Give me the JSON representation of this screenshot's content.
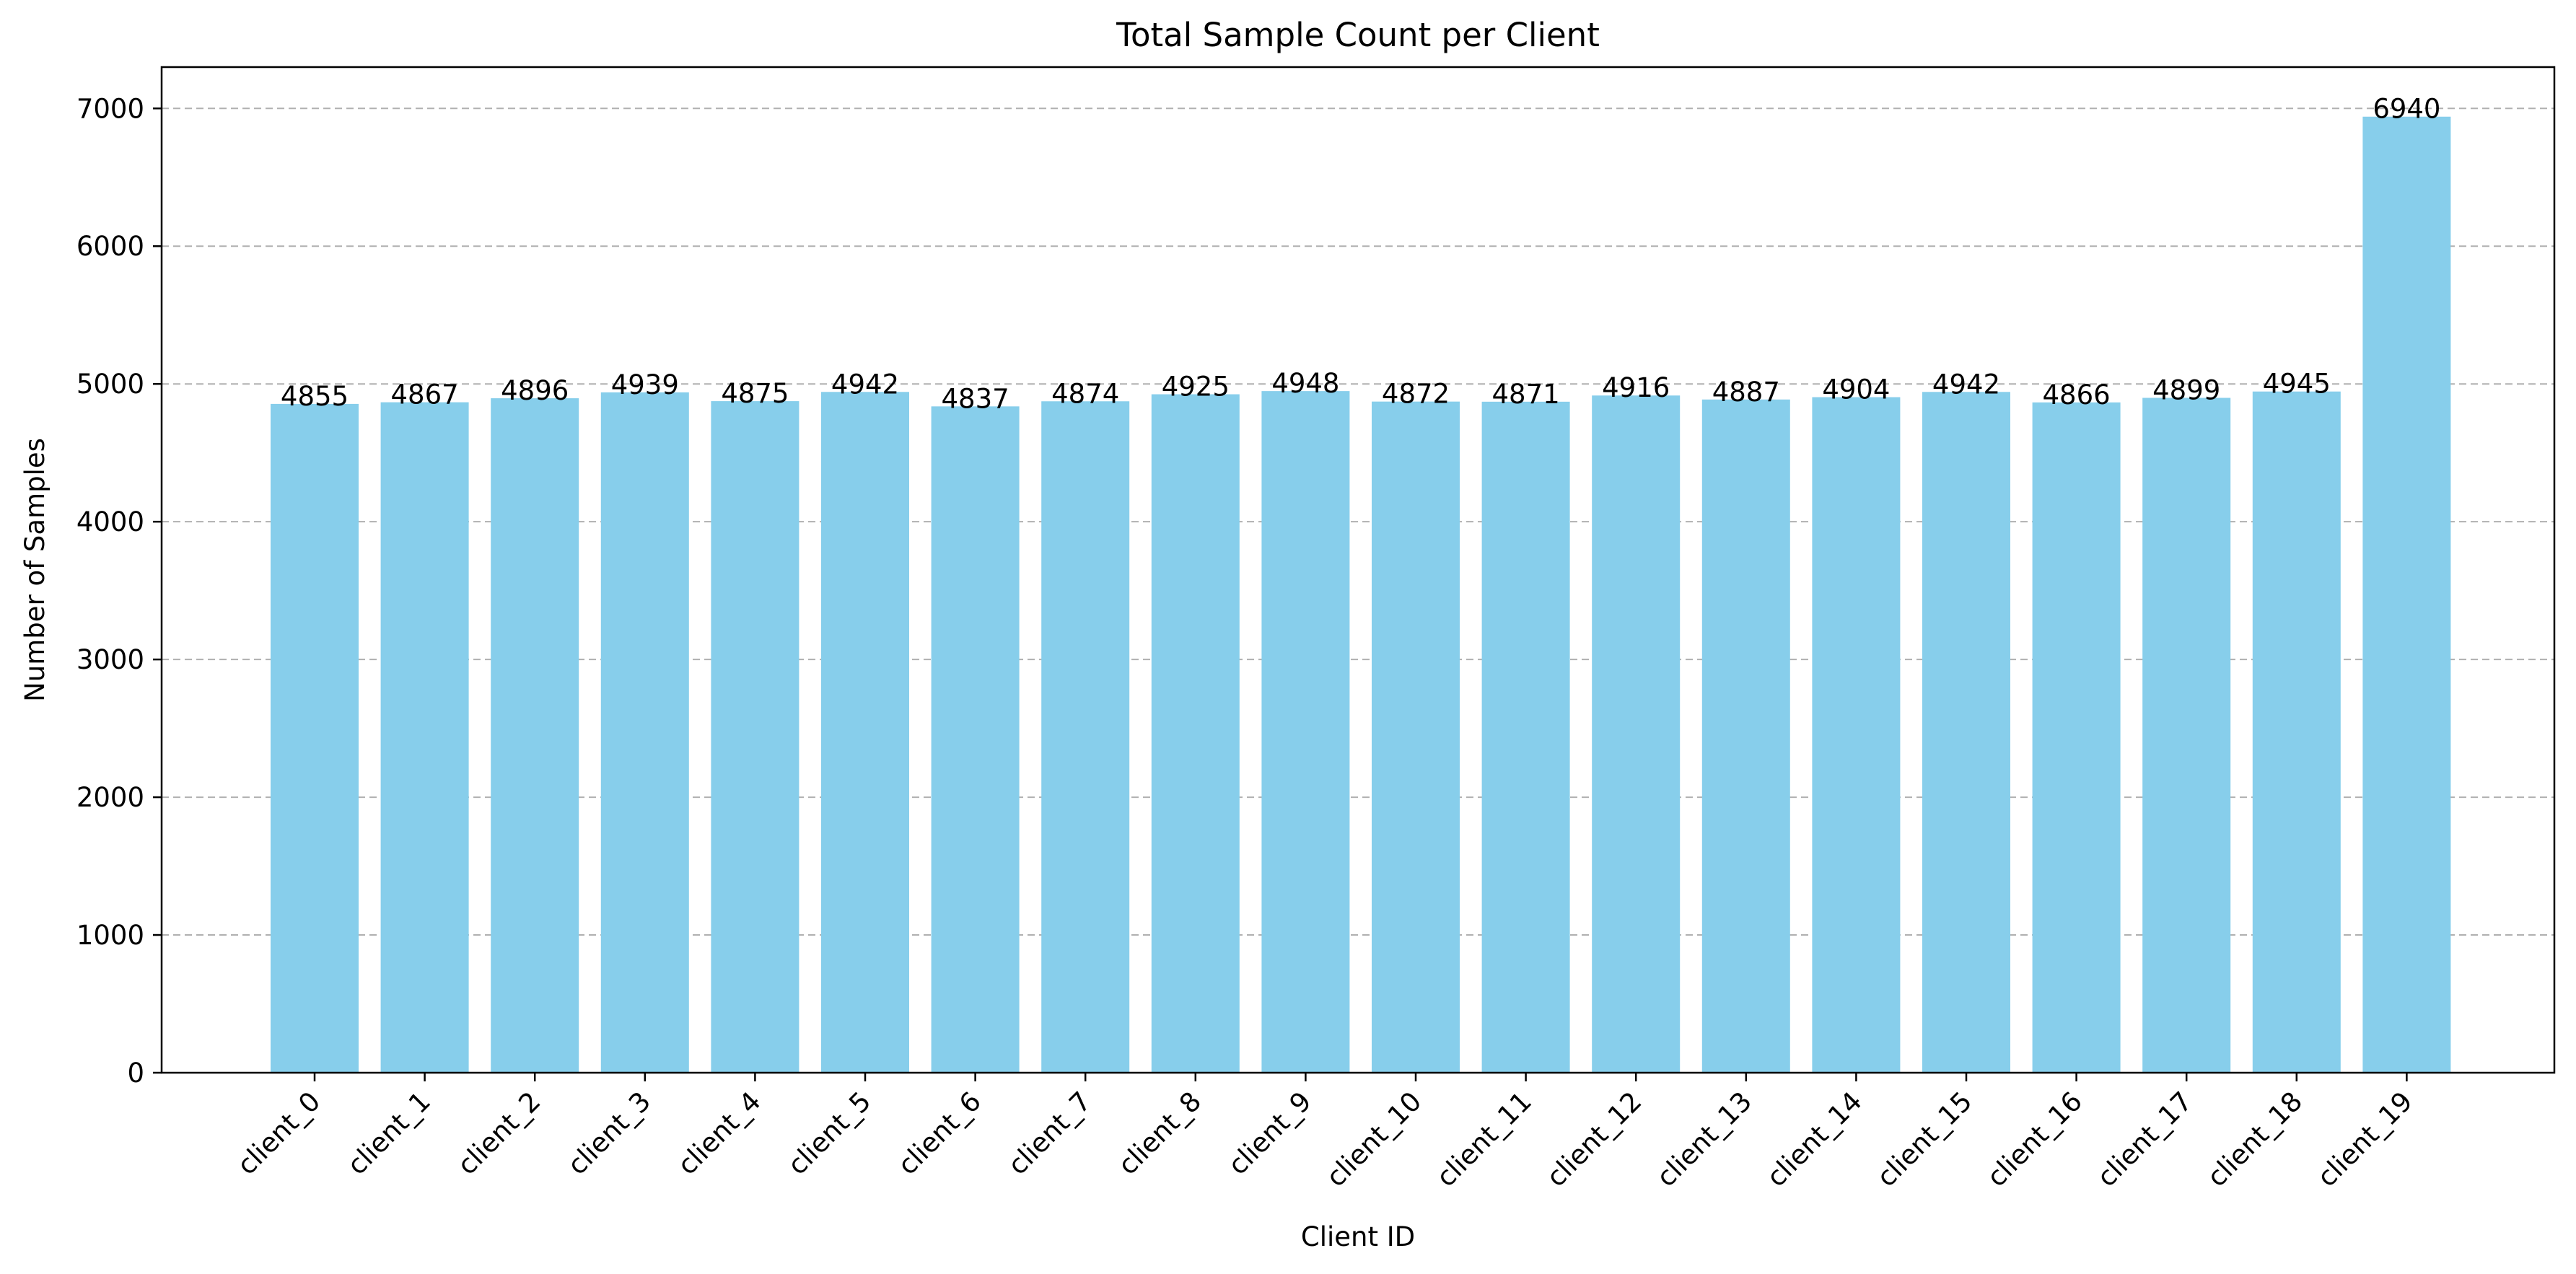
{
  "chart_data": {
    "type": "bar",
    "title": "Total Sample Count per Client",
    "xlabel": "Client ID",
    "ylabel": "Number of Samples",
    "categories": [
      "client_0",
      "client_1",
      "client_2",
      "client_3",
      "client_4",
      "client_5",
      "client_6",
      "client_7",
      "client_8",
      "client_9",
      "client_10",
      "client_11",
      "client_12",
      "client_13",
      "client_14",
      "client_15",
      "client_16",
      "client_17",
      "client_18",
      "client_19"
    ],
    "values": [
      4855,
      4867,
      4896,
      4939,
      4875,
      4942,
      4837,
      4874,
      4925,
      4948,
      4872,
      4871,
      4916,
      4887,
      4904,
      4942,
      4866,
      4899,
      4945,
      6940
    ],
    "ylim": [
      0,
      7300
    ],
    "yticks": [
      0,
      1000,
      2000,
      3000,
      4000,
      5000,
      6000,
      7000
    ],
    "grid": "y-dashed",
    "bar_color": "#87CEEB",
    "grid_color": "#b0b0b0",
    "data_labels": true
  }
}
